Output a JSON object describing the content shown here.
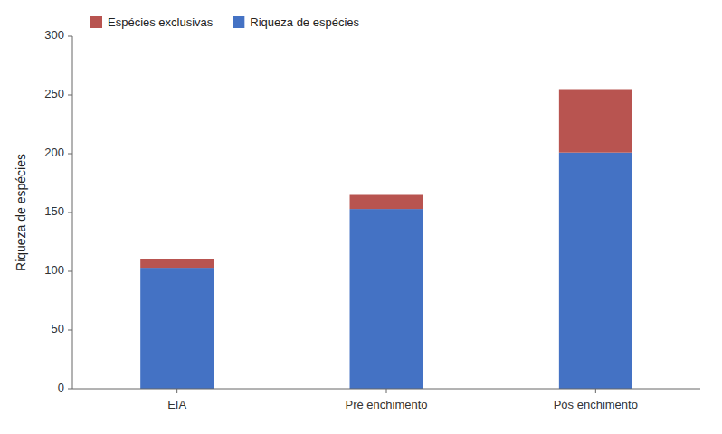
{
  "chart_data": {
    "type": "bar",
    "stacked": true,
    "categories": [
      "EIA",
      "Pré enchimento",
      "Pós enchimento"
    ],
    "series": [
      {
        "name": "Riqueza de espécies",
        "color": "#4472C4",
        "values": [
          103,
          153,
          201
        ]
      },
      {
        "name": "Espécies exclusivas",
        "color": "#B85450",
        "values": [
          7,
          12,
          54
        ]
      }
    ],
    "ylabel": "Riqueza de espécies",
    "ylim": [
      0,
      300
    ],
    "yticks": [
      0,
      50,
      100,
      150,
      200,
      250,
      300
    ],
    "grid": false,
    "legend": "upper left"
  }
}
